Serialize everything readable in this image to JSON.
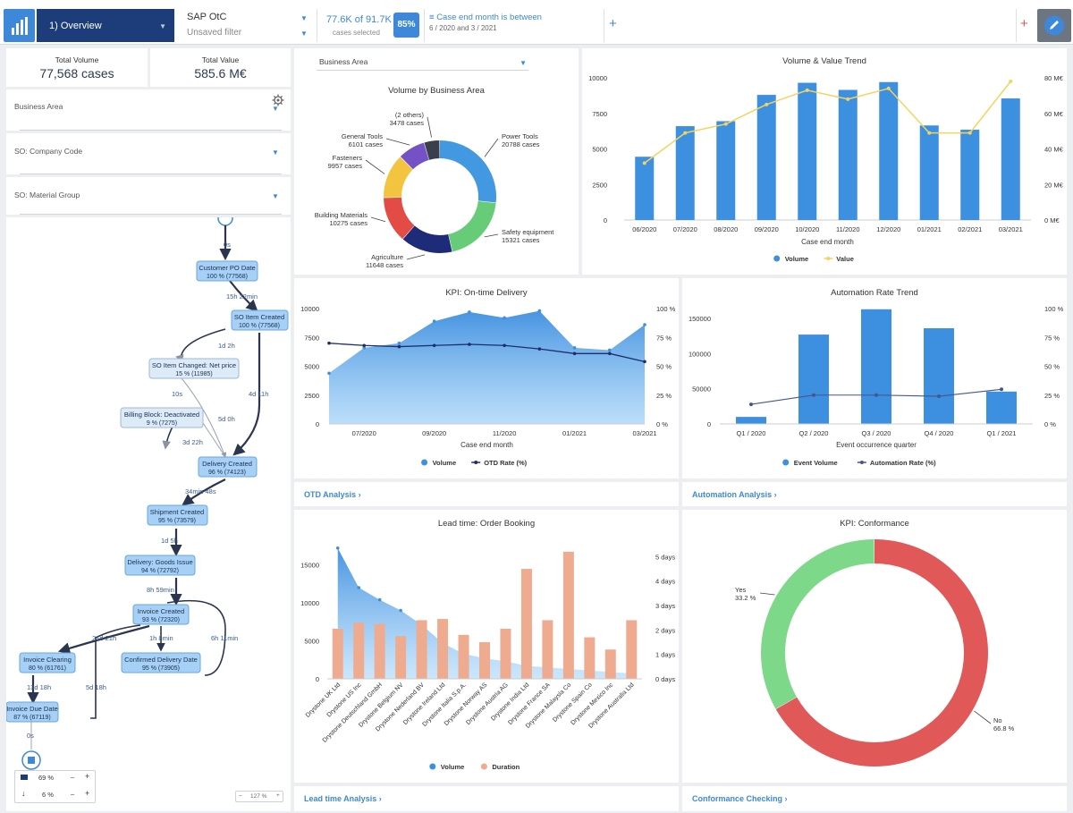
{
  "topbar": {
    "analysis_name": "1) Overview",
    "datamodel": "SAP OtC",
    "filter_state": "Unsaved filter",
    "cases_selected": "77.6K of 91.7K",
    "cases_selected_label": "cases selected",
    "selection_percent": "85%",
    "filter_title": "Case end month is between",
    "filter_value": "6 / 2020 and 3 / 2021"
  },
  "kpis": {
    "total_volume_label": "Total Volume",
    "total_volume_value": "77,568 cases",
    "total_value_label": "Total Value",
    "total_value_value": "585.6 M€"
  },
  "filters": {
    "business_area": "Business Area",
    "company_code": "SO: Company Code",
    "material_group": "SO: Material Group"
  },
  "process": {
    "nodes": [
      {
        "name": "Customer PO Date",
        "stat": "100 % (77568)"
      },
      {
        "name": "SO Item Created",
        "stat": "100 % (77568)"
      },
      {
        "name": "SO Item Changed: Net price",
        "stat": "15 % (11985)"
      },
      {
        "name": "Billing Block: Deactivated",
        "stat": "9 % (7275)"
      },
      {
        "name": "Delivery Created",
        "stat": "96 % (74123)"
      },
      {
        "name": "Shipment Created",
        "stat": "95 % (73579)"
      },
      {
        "name": "Delivery: Goods Issue",
        "stat": "94 % (72792)"
      },
      {
        "name": "Invoice Created",
        "stat": "93 % (72320)"
      },
      {
        "name": "Invoice Clearing",
        "stat": "80 % (61761)"
      },
      {
        "name": "Confirmed Delivery Date",
        "stat": "95 % (73905)"
      },
      {
        "name": "Invoice Due Date",
        "stat": "87 % (67119)"
      }
    ],
    "edges": [
      "0s",
      "15h 22min",
      "1d 2h",
      "10s",
      "4d 11h",
      "5d 0h",
      "3d 22h",
      "34min 48s",
      "1d 5h",
      "8h 59min",
      "21d 21h",
      "1h 8min",
      "6h 11min",
      "13d 18h",
      "5d 18h",
      "0s"
    ],
    "activities_slider": "69 %",
    "connections_slider": "6 %",
    "zoom": "127 %"
  },
  "panels": {
    "donut_dropdown": "Business Area",
    "donut_title": "Volume by Business Area",
    "vv_title": "Volume & Value Trend",
    "otd_title": "KPI: On-time Delivery",
    "auto_title": "Automation Rate Trend",
    "lead_title": "Lead time: Order Booking",
    "conf_title": "KPI: Conformance",
    "otd_link": "OTD Analysis ›",
    "auto_link": "Automation Analysis ›",
    "lead_link": "Lead time Analysis ›",
    "conf_link": "Conformance Checking ›"
  },
  "colors": {
    "accent": "#3d88d8",
    "navy": "#1c3d7a",
    "bar": "#3d8fe0",
    "value_line": "#f4d35e",
    "rate_line": "#1d2e6b",
    "duration_bar": "#eeab90",
    "conform_yes": "#7ed88a",
    "conform_no": "#e05858",
    "process_node": "#a6d0f5"
  },
  "chart_data": [
    {
      "id": "donut",
      "type": "pie",
      "title": "Volume by Business Area",
      "categories": [
        "Power Tools",
        "Safety equipment",
        "Agriculture",
        "Building Materials",
        "Fasteners",
        "General Tools",
        "(2 others)"
      ],
      "values": [
        20788,
        15321,
        11648,
        10275,
        9957,
        6101,
        3478
      ],
      "value_labels": [
        "20788 cases",
        "15321 cases",
        "11648 cases",
        "10275 cases",
        "9957 cases",
        "6101 cases",
        "3478 cases"
      ],
      "colors": [
        "#4299e1",
        "#66cc77",
        "#1e2b78",
        "#e34b45",
        "#f2c440",
        "#7451c5",
        "#3a3f4b"
      ]
    },
    {
      "id": "vv",
      "type": "bar",
      "title": "Volume & Value Trend",
      "xlabel": "Case end month",
      "categories": [
        "06/2020",
        "07/2020",
        "08/2020",
        "09/2020",
        "10/2020",
        "11/2020",
        "12/2020",
        "01/2021",
        "02/2021",
        "03/2021"
      ],
      "series": [
        {
          "name": "Volume",
          "type": "bar",
          "axis": "left",
          "values": [
            4450,
            6600,
            6950,
            8800,
            9650,
            9150,
            9700,
            6650,
            6350,
            8550
          ]
        },
        {
          "name": "Value",
          "type": "line",
          "axis": "right",
          "values": [
            32,
            49,
            54,
            65,
            73,
            68,
            74,
            49,
            49,
            78
          ]
        }
      ],
      "ylim": [
        0,
        10000
      ],
      "yticks": [
        "0",
        "2500",
        "5000",
        "7500",
        "10000"
      ],
      "y2lim": [
        0,
        80
      ],
      "y2ticks": [
        "0 M€",
        "20 M€",
        "40 M€",
        "60 M€",
        "80 M€"
      ]
    },
    {
      "id": "otd",
      "type": "area",
      "title": "KPI: On-time Delivery",
      "xlabel": "Case end month",
      "xticks": [
        "07/2020",
        "09/2020",
        "11/2020",
        "01/2021",
        "03/2021"
      ],
      "series": [
        {
          "name": "Volume",
          "type": "area",
          "axis": "left",
          "values": [
            4400,
            6600,
            7000,
            8900,
            9700,
            9200,
            9800,
            6600,
            6400,
            8600
          ]
        },
        {
          "name": "OTD Rate (%)",
          "type": "line",
          "axis": "right",
          "values": [
            70,
            68,
            67,
            68,
            69,
            68,
            65,
            61,
            61,
            54
          ]
        }
      ],
      "ylim": [
        0,
        10000
      ],
      "yticks": [
        "0",
        "2500",
        "5000",
        "7500",
        "10000"
      ],
      "y2lim": [
        0,
        100
      ],
      "y2ticks": [
        "0 %",
        "25 %",
        "50 %",
        "75 %",
        "100 %"
      ]
    },
    {
      "id": "auto",
      "type": "bar",
      "title": "Automation Rate Trend",
      "xlabel": "Event occurrence quarter",
      "categories": [
        "Q1 / 2020",
        "Q2 / 2020",
        "Q3 / 2020",
        "Q4 / 2020",
        "Q1 / 2021"
      ],
      "series": [
        {
          "name": "Event Volume",
          "type": "bar",
          "axis": "left",
          "values": [
            10000,
            127000,
            163000,
            136000,
            46000
          ]
        },
        {
          "name": "Automation Rate (%)",
          "type": "line",
          "axis": "right",
          "values": [
            17,
            25,
            25,
            24,
            30
          ]
        }
      ],
      "ylim": [
        0,
        150000
      ],
      "yticks": [
        "0",
        "50000",
        "100000",
        "150000"
      ],
      "y2lim": [
        0,
        100
      ],
      "y2ticks": [
        "0 %",
        "25 %",
        "50 %",
        "75 %",
        "100 %"
      ]
    },
    {
      "id": "lead",
      "type": "bar",
      "title": "Lead time: Order Booking",
      "categories": [
        "Drystone UK Ltd",
        "Drystone US Inc",
        "Drystone Deutschland GmbH",
        "Drystone Belgium NV",
        "Drystone Nederland BV",
        "Drystone Ireland Ltd",
        "Drystone Italia S.p.A.",
        "Drystone Norway AS",
        "Drystone Austria AG",
        "Drystone India Ltd",
        "Drystone France SA",
        "Drystone Malaysia Co",
        "Drystone Spain Co",
        "Drystone Mexico Inc",
        "Drystone Australia Ltd"
      ],
      "series": [
        {
          "name": "Volume",
          "type": "area",
          "axis": "left",
          "values": [
            17200,
            12000,
            10400,
            9000,
            7100,
            4700,
            3300,
            2700,
            2300,
            1700,
            1500,
            1300,
            1100,
            900,
            700
          ]
        },
        {
          "name": "Duration",
          "type": "bar",
          "axis": "right",
          "values": [
            2.05,
            2.3,
            2.25,
            1.75,
            2.4,
            2.45,
            1.8,
            1.5,
            2.05,
            4.5,
            2.4,
            5.2,
            1.7,
            1.2,
            2.4
          ]
        }
      ],
      "ylim": [
        0,
        18000
      ],
      "yticks": [
        "0",
        "5000",
        "10000",
        "15000"
      ],
      "y2lim": [
        0,
        5.6
      ],
      "y2ticks": [
        "0 days",
        "1 days",
        "2 days",
        "3 days",
        "4 days",
        "5 days"
      ]
    },
    {
      "id": "conf",
      "type": "pie",
      "title": "KPI: Conformance",
      "categories": [
        "Yes",
        "No"
      ],
      "values": [
        33.2,
        66.8
      ],
      "value_labels": [
        "33.2 %",
        "66.8 %"
      ],
      "colors": [
        "#7ed88a",
        "#e05858"
      ]
    }
  ]
}
